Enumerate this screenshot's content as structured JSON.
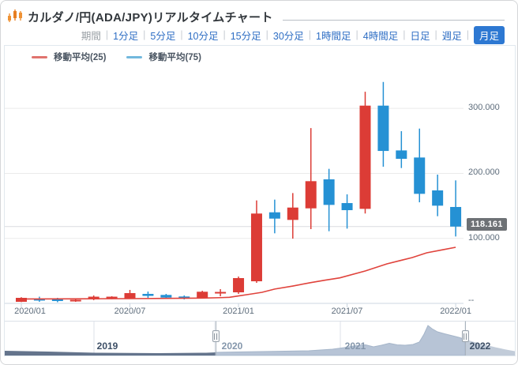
{
  "header": {
    "title": "カルダノ/円(ADA/JPY)リアルタイムチャート",
    "icon": "candlestick-chart-icon"
  },
  "periods": {
    "label": "期間",
    "separator": "|",
    "items": [
      {
        "label": "1分足",
        "selected": false
      },
      {
        "label": "5分足",
        "selected": false
      },
      {
        "label": "10分足",
        "selected": false
      },
      {
        "label": "15分足",
        "selected": false
      },
      {
        "label": "30分足",
        "selected": false
      },
      {
        "label": "1時間足",
        "selected": false
      },
      {
        "label": "4時間足",
        "selected": false
      },
      {
        "label": "日足",
        "selected": false
      },
      {
        "label": "週足",
        "selected": false
      },
      {
        "label": "月足",
        "selected": true
      }
    ],
    "accent_color": "#2d78d2",
    "link_color": "#2e6ec4"
  },
  "legend": {
    "items": [
      {
        "label": "移動平均(25)",
        "color": "#e0736e"
      },
      {
        "label": "移動平均(75)",
        "color": "#72b8dd"
      }
    ]
  },
  "chart_data": {
    "type": "candlestick",
    "title": "カルダノ/円(ADA/JPY)リアルタイムチャート 月足",
    "up_color": "#dc3c36",
    "down_color": "#2591d4",
    "ma25_color": "#e0433c",
    "grid": "horizontal-only",
    "y_axis": {
      "side": "right",
      "range": [
        0,
        396
      ],
      "ticks": [
        {
          "value": 300,
          "label": "300.000"
        },
        {
          "value": 200,
          "label": "200.000"
        },
        {
          "value": 100,
          "label": "100.000"
        },
        {
          "value": 0,
          "label": "--"
        }
      ]
    },
    "x_labels": [
      "2020/01",
      "2020/07",
      "2021/01",
      "2021/07",
      "2022/01"
    ],
    "current_price": {
      "label": "118.161",
      "value": 118.161
    },
    "candles": [
      {
        "t": "2020/01",
        "o": 2.4,
        "h": 9.5,
        "l": 2.0,
        "c": 8.5
      },
      {
        "t": "2020/02",
        "o": 7.3,
        "h": 10.3,
        "l": 2.4,
        "c": 4.3
      },
      {
        "t": "2020/03",
        "o": 6.1,
        "h": 8.5,
        "l": 1.8,
        "c": 3.6
      },
      {
        "t": "2020/04",
        "o": 3.0,
        "h": 7.3,
        "l": 2.4,
        "c": 5.5
      },
      {
        "t": "2020/05",
        "o": 6.1,
        "h": 12.2,
        "l": 4.9,
        "c": 10.3
      },
      {
        "t": "2020/06",
        "o": 7.3,
        "h": 11.0,
        "l": 6.5,
        "c": 10.3
      },
      {
        "t": "2020/07",
        "o": 7.9,
        "h": 20.7,
        "l": 6.7,
        "c": 15.8
      },
      {
        "t": "2020/08",
        "o": 14.6,
        "h": 18.2,
        "l": 8.5,
        "c": 11.5
      },
      {
        "t": "2020/09",
        "o": 13.0,
        "h": 14.6,
        "l": 7.3,
        "c": 8.9
      },
      {
        "t": "2020/10",
        "o": 10.6,
        "h": 12.2,
        "l": 6.1,
        "c": 7.3
      },
      {
        "t": "2020/11",
        "o": 8.5,
        "h": 19.4,
        "l": 7.3,
        "c": 17.9
      },
      {
        "t": "2020/12",
        "o": 15.8,
        "h": 21.9,
        "l": 10.9,
        "c": 17.6
      },
      {
        "t": "2021/01",
        "o": 17.0,
        "h": 41.3,
        "l": 14.6,
        "c": 38.9
      },
      {
        "t": "2021/02",
        "o": 34.0,
        "h": 158.4,
        "l": 31.6,
        "c": 138.2
      },
      {
        "t": "2021/03",
        "o": 140.1,
        "h": 159.6,
        "l": 107.8,
        "c": 130.4
      },
      {
        "t": "2021/04",
        "o": 128.4,
        "h": 169.7,
        "l": 99.6,
        "c": 147.4
      },
      {
        "t": "2021/05",
        "o": 146.2,
        "h": 269.7,
        "l": 114.2,
        "c": 188.0
      },
      {
        "t": "2021/06",
        "o": 190.8,
        "h": 207.0,
        "l": 111.0,
        "c": 151.5
      },
      {
        "t": "2021/07",
        "o": 154.3,
        "h": 167.7,
        "l": 115.0,
        "c": 143.4
      },
      {
        "t": "2021/08",
        "o": 145.4,
        "h": 325.6,
        "l": 138.2,
        "c": 304.2
      },
      {
        "t": "2021/09",
        "o": 304.2,
        "h": 340.6,
        "l": 210.2,
        "c": 234.5
      },
      {
        "t": "2021/10",
        "o": 235.3,
        "h": 264.9,
        "l": 208.2,
        "c": 222.4
      },
      {
        "t": "2021/11",
        "o": 224.4,
        "h": 268.9,
        "l": 155.5,
        "c": 168.5
      },
      {
        "t": "2021/12",
        "o": 173.8,
        "h": 198.1,
        "l": 134.1,
        "c": 150.3
      },
      {
        "t": "2022/01",
        "o": 148.3,
        "h": 189.2,
        "l": 102.9,
        "c": 118.161
      }
    ],
    "ma25": [
      {
        "k": 0.3,
        "v": 6.7
      },
      {
        "k": 2,
        "v": 6.9
      },
      {
        "k": 4,
        "v": 7.1
      },
      {
        "k": 6,
        "v": 7.3
      },
      {
        "k": 8,
        "v": 7.7
      },
      {
        "k": 10,
        "v": 8.1
      },
      {
        "k": 11,
        "v": 8.8
      },
      {
        "k": 11.5,
        "v": 9.3
      },
      {
        "k": 12,
        "v": 11.5
      },
      {
        "k": 12.6,
        "v": 14.0
      },
      {
        "k": 13.3,
        "v": 17.0
      },
      {
        "k": 14,
        "v": 22.0
      },
      {
        "k": 15,
        "v": 26.7
      },
      {
        "k": 16,
        "v": 32.0
      },
      {
        "k": 16.8,
        "v": 35.8
      },
      {
        "k": 17.6,
        "v": 39.3
      },
      {
        "k": 19,
        "v": 49.8
      },
      {
        "k": 20.2,
        "v": 60.8
      },
      {
        "k": 21.6,
        "v": 70.5
      },
      {
        "k": 22.4,
        "v": 77.8
      },
      {
        "k": 23.3,
        "v": 82.6
      },
      {
        "k": 24,
        "v": 86.3
      }
    ]
  },
  "navigator": {
    "years": [
      {
        "label": "2019",
        "emphasis": true
      },
      {
        "label": "2020",
        "emphasis": false
      },
      {
        "label": "2021",
        "emphasis": false
      },
      {
        "label": "2022",
        "emphasis": true
      }
    ],
    "colors": {
      "outside_fill": "#64748c",
      "selected_fill": "#b7c4d6",
      "right_fill": "#c2ccd9"
    },
    "area": [
      [
        0,
        6
      ],
      [
        55,
        5
      ],
      [
        115,
        3.5
      ],
      [
        195,
        3
      ],
      [
        255,
        3.5
      ],
      [
        267,
        4
      ],
      [
        295,
        4.5
      ],
      [
        325,
        5
      ],
      [
        355,
        5.5
      ],
      [
        385,
        6
      ],
      [
        415,
        8
      ],
      [
        430,
        10
      ],
      [
        445,
        12.5
      ],
      [
        457,
        13.5
      ],
      [
        467,
        11
      ],
      [
        477,
        13
      ],
      [
        487,
        15.5
      ],
      [
        497,
        13.5
      ],
      [
        507,
        13
      ],
      [
        517,
        14
      ],
      [
        525,
        17
      ],
      [
        531,
        27
      ],
      [
        536,
        38
      ],
      [
        541,
        34
      ],
      [
        548,
        30
      ],
      [
        557,
        27.5
      ],
      [
        567,
        25
      ],
      [
        575,
        23
      ],
      [
        583,
        20.5
      ],
      [
        593,
        17.5
      ],
      [
        607,
        14
      ],
      [
        621,
        10.5
      ],
      [
        635,
        7.5
      ],
      [
        646,
        5.5
      ]
    ]
  }
}
